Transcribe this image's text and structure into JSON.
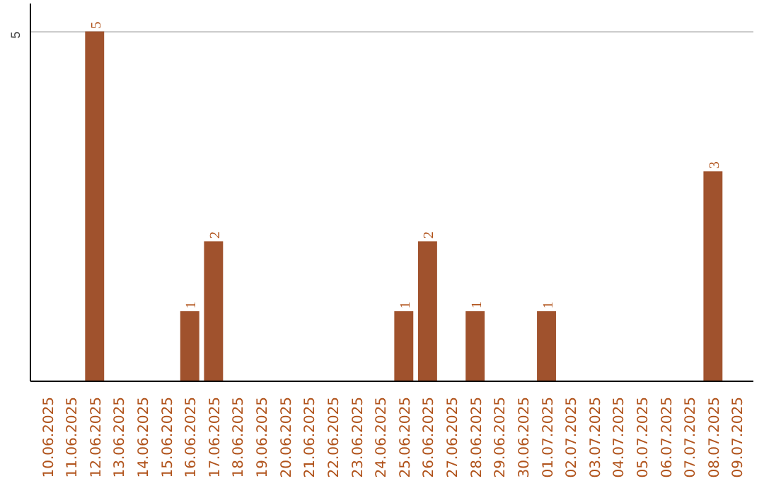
{
  "chart_data": {
    "type": "bar",
    "categories": [
      "10.06.2025",
      "11.06.2025",
      "12.06.2025",
      "13.06.2025",
      "14.06.2025",
      "15.06.2025",
      "16.06.2025",
      "17.06.2025",
      "18.06.2025",
      "19.06.2025",
      "20.06.2025",
      "21.06.2025",
      "22.06.2025",
      "23.06.2025",
      "24.06.2025",
      "25.06.2025",
      "26.06.2025",
      "27.06.2025",
      "28.06.2025",
      "29.06.2025",
      "30.06.2025",
      "01.07.2025",
      "02.07.2025",
      "03.07.2025",
      "04.07.2025",
      "05.07.2025",
      "06.07.2025",
      "07.07.2025",
      "08.07.2025",
      "09.07.2025"
    ],
    "values": [
      0,
      0,
      5,
      0,
      0,
      0,
      1,
      2,
      0,
      0,
      0,
      0,
      0,
      0,
      0,
      1,
      2,
      0,
      1,
      0,
      0,
      1,
      0,
      0,
      0,
      0,
      0,
      0,
      3,
      0
    ],
    "value_labels": [
      null,
      null,
      "5",
      null,
      null,
      null,
      "1",
      "2",
      null,
      null,
      null,
      null,
      null,
      null,
      null,
      "1",
      "2",
      null,
      "1",
      null,
      null,
      "1",
      null,
      null,
      null,
      null,
      null,
      null,
      "3",
      null
    ],
    "color": "#a0522d",
    "ylim": [
      0,
      5.4
    ],
    "yticks": [
      5
    ],
    "grid": "y"
  }
}
